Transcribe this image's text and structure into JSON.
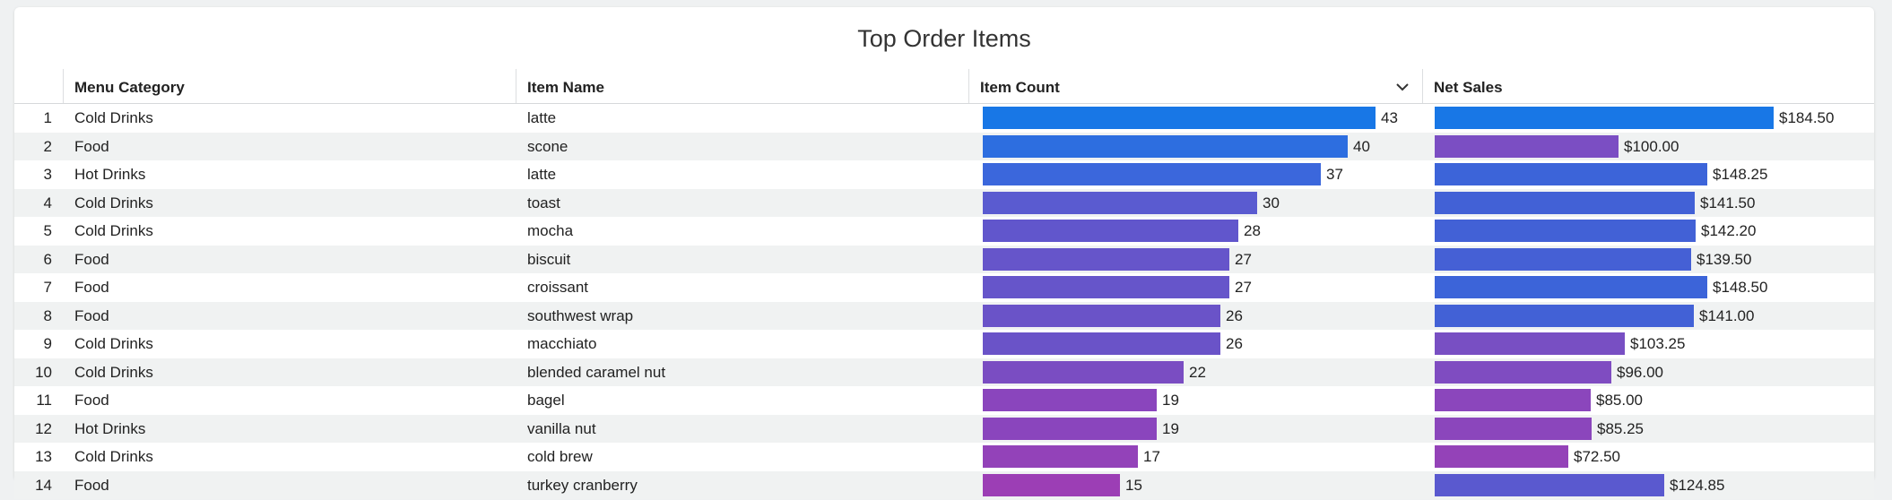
{
  "chart_data": {
    "type": "table",
    "title": "Top Order Items",
    "columns": [
      "Menu Category",
      "Item Name",
      "Item Count",
      "Net Sales"
    ],
    "sorted_column": "Item Count",
    "count_max": 43,
    "sales_max": 184.5,
    "rows": [
      {
        "index": "1",
        "category": "Cold Drinks",
        "item": "latte",
        "count": 43,
        "count_label": "43",
        "sales": 184.5,
        "sales_label": "$184.50",
        "count_color": "#1877e6",
        "sales_color": "#1877e6"
      },
      {
        "index": "2",
        "category": "Food",
        "item": "scone",
        "count": 40,
        "count_label": "40",
        "sales": 100.0,
        "sales_label": "$100.00",
        "count_color": "#2d6ee0",
        "sales_color": "#7b4ec3"
      },
      {
        "index": "3",
        "category": "Hot Drinks",
        "item": "latte",
        "count": 37,
        "count_label": "37",
        "sales": 148.25,
        "sales_label": "$148.25",
        "count_color": "#3b67dc",
        "sales_color": "#3c64d9"
      },
      {
        "index": "4",
        "category": "Cold Drinks",
        "item": "toast",
        "count": 30,
        "count_label": "30",
        "sales": 141.5,
        "sales_label": "$141.50",
        "count_color": "#5a5bd0",
        "sales_color": "#4261d6"
      },
      {
        "index": "5",
        "category": "Cold Drinks",
        "item": "mocha",
        "count": 28,
        "count_label": "28",
        "sales": 142.2,
        "sales_label": "$142.20",
        "count_color": "#6156cc",
        "sales_color": "#4261d6"
      },
      {
        "index": "6",
        "category": "Food",
        "item": "biscuit",
        "count": 27,
        "count_label": "27",
        "sales": 139.5,
        "sales_label": "$139.50",
        "count_color": "#6655ca",
        "sales_color": "#4560d5"
      },
      {
        "index": "7",
        "category": "Food",
        "item": "croissant",
        "count": 27,
        "count_label": "27",
        "sales": 148.5,
        "sales_label": "$148.50",
        "count_color": "#6655ca",
        "sales_color": "#3c64d9"
      },
      {
        "index": "8",
        "category": "Food",
        "item": "southwest wrap",
        "count": 26,
        "count_label": "26",
        "sales": 141.0,
        "sales_label": "$141.00",
        "count_color": "#6a53c8",
        "sales_color": "#4261d6"
      },
      {
        "index": "9",
        "category": "Cold Drinks",
        "item": "macchiato",
        "count": 26,
        "count_label": "26",
        "sales": 103.25,
        "sales_label": "$103.25",
        "count_color": "#6a53c8",
        "sales_color": "#784fc3"
      },
      {
        "index": "10",
        "category": "Cold Drinks",
        "item": "blended caramel nut",
        "count": 22,
        "count_label": "22",
        "sales": 96.0,
        "sales_label": "$96.00",
        "count_color": "#7a4dc2",
        "sales_color": "#7f4cc1"
      },
      {
        "index": "11",
        "category": "Food",
        "item": "bagel",
        "count": 19,
        "count_label": "19",
        "sales": 85.0,
        "sales_label": "$85.00",
        "count_color": "#8a45bd",
        "sales_color": "#8b46bc"
      },
      {
        "index": "12",
        "category": "Hot Drinks",
        "item": "vanilla nut",
        "count": 19,
        "count_label": "19",
        "sales": 85.25,
        "sales_label": "$85.25",
        "count_color": "#8a45bd",
        "sales_color": "#8b46bc"
      },
      {
        "index": "13",
        "category": "Cold Drinks",
        "item": "cold brew",
        "count": 17,
        "count_label": "17",
        "sales": 72.5,
        "sales_label": "$72.50",
        "count_color": "#9342b9",
        "sales_color": "#9442b8"
      },
      {
        "index": "14",
        "category": "Food",
        "item": "turkey cranberry",
        "count": 15,
        "count_label": "15",
        "sales": 124.85,
        "sales_label": "$124.85",
        "count_color": "#9c3eb5",
        "sales_color": "#5a59cf"
      }
    ]
  },
  "icons": {
    "sort": "chevron-down-icon"
  }
}
